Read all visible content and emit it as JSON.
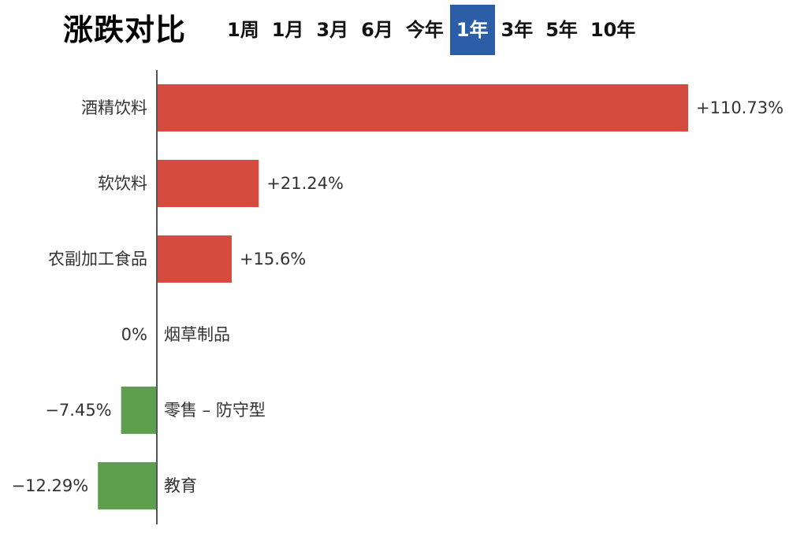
{
  "header": {
    "title": "涨跌对比",
    "tabs": [
      {
        "label": "1周",
        "active": false
      },
      {
        "label": "1月",
        "active": false
      },
      {
        "label": "3月",
        "active": false
      },
      {
        "label": "6月",
        "active": false
      },
      {
        "label": "今年",
        "active": false
      },
      {
        "label": "1年",
        "active": true
      },
      {
        "label": "3年",
        "active": false
      },
      {
        "label": "5年",
        "active": false
      },
      {
        "label": "10年",
        "active": false
      }
    ]
  },
  "colors": {
    "positive": "#d64b40",
    "negative": "#5e9e4f",
    "axis": "#555555",
    "active_tab": "#2b5ea7"
  },
  "chart_data": {
    "type": "bar",
    "orientation": "horizontal",
    "categories": [
      "酒精饮料",
      "软饮料",
      "农副加工食品",
      "烟草制品",
      "零售 – 防守型",
      "教育"
    ],
    "values": [
      110.73,
      21.24,
      15.6,
      0,
      -7.45,
      -12.29
    ],
    "value_labels": [
      "+110.73%",
      "+21.24%",
      "+15.6%",
      "0%",
      "−7.45%",
      "−12.29%"
    ],
    "unit": "%",
    "grid": false,
    "legend": "none"
  }
}
